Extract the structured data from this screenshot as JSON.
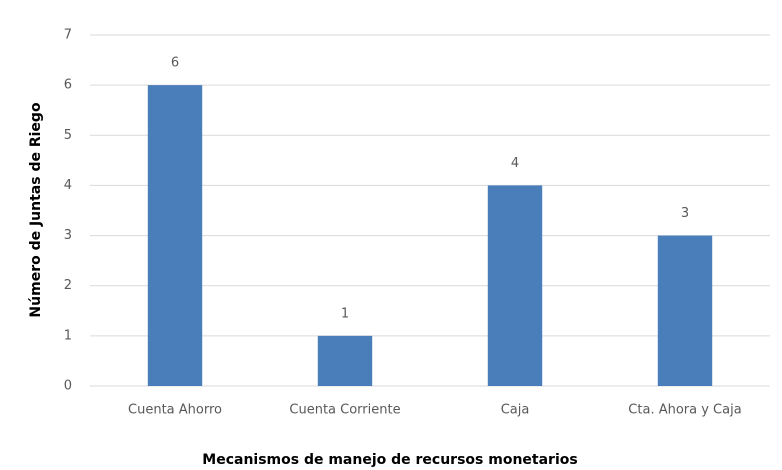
{
  "chart_data": {
    "type": "bar",
    "xlabel": "Mecanismos de manejo de recursos monetarios",
    "ylabel": "Número de Juntas de Riego",
    "categories": [
      "Cuenta Ahorro",
      "Cuenta Corriente",
      "Caja",
      "Cta. Ahora y Caja"
    ],
    "values": [
      6,
      1,
      4,
      3
    ],
    "color": "#4a7ebb",
    "ylim": [
      0,
      7
    ],
    "yticks": [
      0,
      1,
      2,
      3,
      4,
      5,
      6,
      7
    ],
    "grid": true
  }
}
